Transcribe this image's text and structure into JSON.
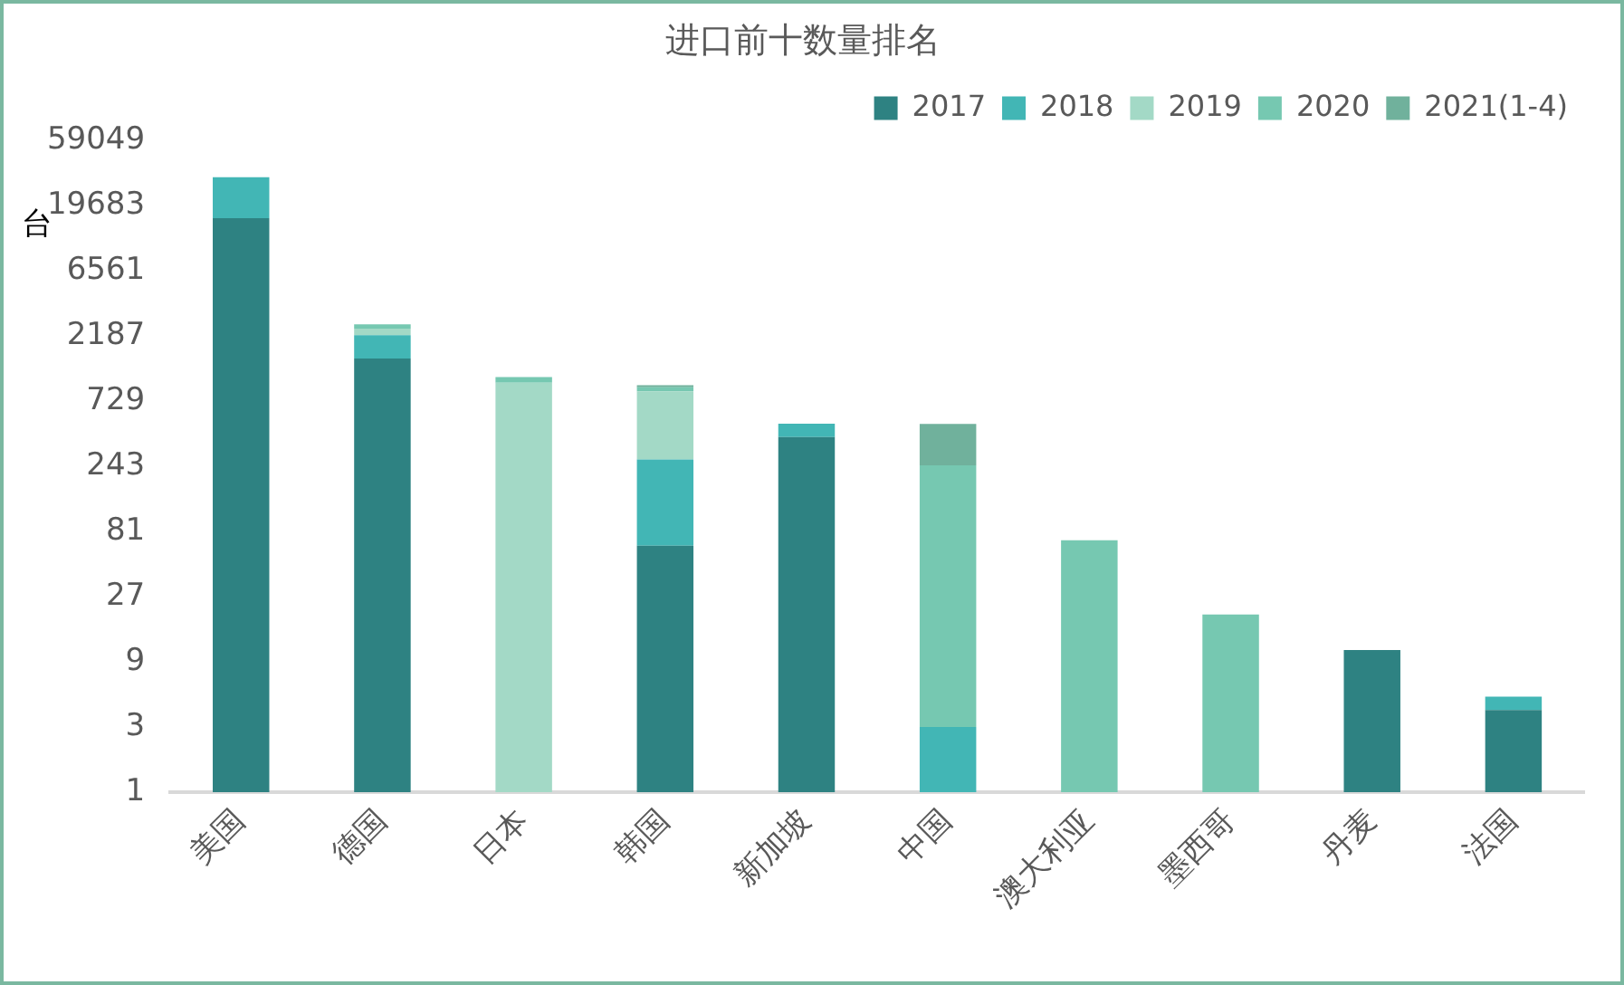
{
  "chart_data": {
    "type": "bar",
    "title": "进口前十数量排名",
    "ylabel": "台",
    "stacked": true,
    "log": true,
    "categories": [
      "美国",
      "德国",
      "日本",
      "韩国",
      "新加坡",
      "中国",
      "澳大利亚",
      "墨西哥",
      "丹麦",
      "法国"
    ],
    "series": [
      {
        "name": "2017",
        "color": "#2e8282",
        "values": [
          16000,
          1500,
          null,
          64,
          400,
          null,
          null,
          null,
          11,
          4
        ]
      },
      {
        "name": "2018",
        "color": "#42b6b5",
        "values": [
          16000,
          730,
          null,
          210,
          100,
          3,
          null,
          null,
          null,
          1
        ]
      },
      {
        "name": "2019",
        "color": "#a3d9c6",
        "values": [
          null,
          260,
          1000,
          590,
          null,
          null,
          null,
          null,
          null,
          null
        ]
      },
      {
        "name": "2020",
        "color": "#76c8b1",
        "values": [
          null,
          180,
          100,
          60,
          null,
          245,
          70,
          20,
          null,
          null
        ]
      },
      {
        "name": "2021(1-4)",
        "color": "#70b19c",
        "values": [
          null,
          null,
          null,
          35,
          null,
          250,
          null,
          null,
          null,
          null
        ]
      }
    ],
    "ylim": [
      1,
      59049
    ],
    "yticks": [
      1,
      3,
      9,
      27,
      81,
      243,
      729,
      2187,
      6561,
      19683,
      59049
    ],
    "grid": false,
    "legend": "top right"
  }
}
